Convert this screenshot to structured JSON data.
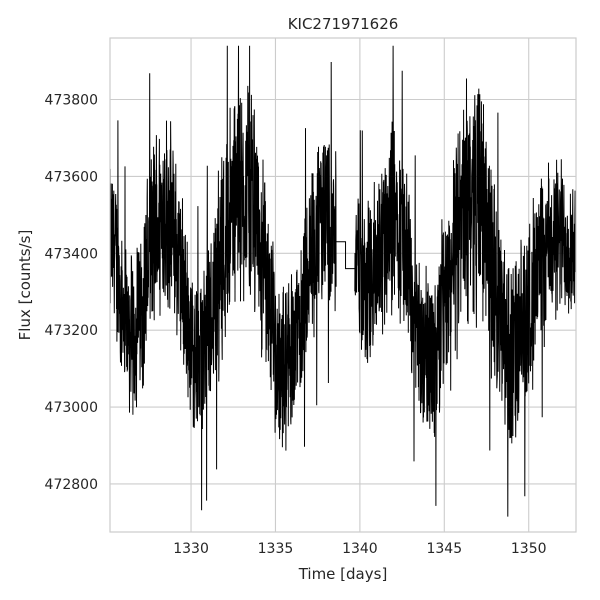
{
  "chart_data": {
    "type": "line",
    "title": "KIC271971626",
    "xlabel": "Time [days]",
    "ylabel": "Flux [counts/s]",
    "xlim": [
      1325.2,
      1352.8
    ],
    "ylim": [
      472675,
      473960
    ],
    "xticks": [
      1330,
      1335,
      1340,
      1345,
      1350
    ],
    "xtick_labels": [
      "1330",
      "1335",
      "1340",
      "1345",
      "1350"
    ],
    "yticks": [
      472800,
      473000,
      473200,
      473400,
      473600,
      473800
    ],
    "ytick_labels": [
      "472800",
      "473000",
      "473200",
      "473400",
      "473600",
      "473800"
    ],
    "grid": true,
    "line_color": "#000000",
    "gap": {
      "start": 1338.6,
      "end": 1339.7,
      "values": [
        473430,
        473430,
        473360,
        473360
      ]
    },
    "series": [
      {
        "x": [
          1325.2,
          1325.5,
          1326.0,
          1326.5,
          1327.0,
          1327.5,
          1328.0,
          1328.5,
          1329.0,
          1329.5,
          1330.0,
          1330.5,
          1331.0,
          1331.5,
          1332.0,
          1332.5,
          1333.0,
          1333.5,
          1334.0,
          1334.5,
          1335.0,
          1335.5,
          1336.0,
          1336.5,
          1337.0,
          1337.5,
          1338.0,
          1338.6,
          1339.7,
          1340.0,
          1340.5,
          1341.0,
          1341.5,
          1342.0,
          1342.5,
          1343.0,
          1343.5,
          1344.0,
          1344.5,
          1345.0,
          1345.5,
          1346.0,
          1346.5,
          1347.0,
          1347.5,
          1348.0,
          1348.5,
          1349.0,
          1349.5,
          1350.0,
          1350.5,
          1351.0,
          1351.5,
          1352.0,
          1352.8
        ],
        "mean": [
          473420,
          473400,
          473260,
          473180,
          473250,
          473400,
          473480,
          473520,
          473450,
          473320,
          473160,
          473120,
          473200,
          473330,
          473440,
          473520,
          473560,
          473540,
          473450,
          473320,
          473150,
          473100,
          473160,
          473260,
          473360,
          473450,
          473500,
          473460,
          473420,
          473340,
          473300,
          473360,
          473470,
          473500,
          473440,
          473330,
          473180,
          473120,
          473180,
          473260,
          473370,
          473470,
          473560,
          473560,
          473470,
          473330,
          473180,
          473120,
          473160,
          473260,
          473350,
          473400,
          473430,
          473440,
          473420
        ],
        "amplitude": [
          200,
          210,
          200,
          200,
          220,
          240,
          260,
          250,
          230,
          220,
          200,
          210,
          230,
          260,
          280,
          290,
          300,
          280,
          260,
          230,
          210,
          200,
          200,
          210,
          220,
          230,
          230,
          210,
          180,
          200,
          220,
          240,
          250,
          250,
          230,
          220,
          210,
          220,
          230,
          240,
          260,
          280,
          300,
          310,
          290,
          260,
          250,
          260,
          240,
          230,
          220,
          210,
          210,
          200,
          190
        ]
      }
    ]
  }
}
